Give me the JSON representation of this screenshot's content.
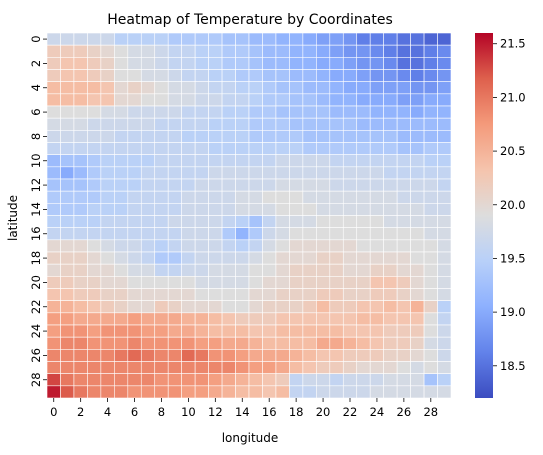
{
  "chart_data": {
    "type": "heatmap",
    "title": "Heatmap of Temperature by Coordinates",
    "xlabel": "longitude",
    "ylabel": "latitude",
    "x_ticks": [
      "0",
      "2",
      "4",
      "6",
      "8",
      "10",
      "12",
      "14",
      "16",
      "18",
      "20",
      "22",
      "24",
      "26",
      "28"
    ],
    "y_ticks": [
      "0",
      "2",
      "4",
      "6",
      "8",
      "10",
      "12",
      "14",
      "16",
      "18",
      "20",
      "22",
      "24",
      "26",
      "28"
    ],
    "x_values": [
      0,
      1,
      2,
      3,
      4,
      5,
      6,
      7,
      8,
      9,
      10,
      11,
      12,
      13,
      14,
      15,
      16,
      17,
      18,
      19,
      20,
      21,
      22,
      23,
      24,
      25,
      26,
      27,
      28,
      29
    ],
    "y_values": [
      0,
      1,
      2,
      3,
      4,
      5,
      6,
      7,
      8,
      9,
      10,
      11,
      12,
      13,
      14,
      15,
      16,
      17,
      18,
      19,
      20,
      21,
      22,
      23,
      24,
      25,
      26,
      27,
      28,
      29
    ],
    "colorbar": {
      "min": 18.2,
      "max": 21.6,
      "ticks": [
        "18.5",
        "19.0",
        "19.5",
        "20.0",
        "20.5",
        "21.0",
        "21.5"
      ],
      "colormap": "coolwarm"
    },
    "grid_lines": "white",
    "values": [
      [
        19.7,
        19.7,
        19.7,
        19.7,
        19.7,
        19.5,
        19.5,
        19.5,
        19.5,
        19.4,
        19.4,
        19.4,
        19.4,
        19.3,
        19.3,
        19.2,
        19.2,
        19.1,
        19.1,
        19.0,
        18.9,
        18.9,
        18.8,
        18.6,
        18.6,
        18.6,
        18.5,
        18.5,
        18.4,
        18.4
      ],
      [
        20.2,
        20.2,
        20.2,
        20.1,
        20.0,
        19.9,
        19.8,
        19.8,
        19.7,
        19.6,
        19.6,
        19.5,
        19.5,
        19.4,
        19.4,
        19.3,
        19.2,
        19.2,
        19.1,
        19.1,
        19.0,
        18.9,
        18.8,
        18.8,
        18.7,
        18.6,
        18.5,
        18.5,
        18.6,
        18.7
      ],
      [
        20.2,
        20.3,
        20.3,
        20.2,
        20.1,
        19.9,
        19.8,
        19.8,
        19.7,
        19.6,
        19.6,
        19.5,
        19.5,
        19.4,
        19.4,
        19.3,
        19.2,
        19.2,
        19.1,
        19.1,
        19.0,
        19.0,
        18.9,
        18.8,
        18.8,
        18.7,
        18.5,
        18.5,
        18.6,
        18.7
      ],
      [
        20.2,
        20.3,
        20.3,
        20.2,
        20.1,
        19.9,
        19.9,
        19.8,
        19.8,
        19.7,
        19.6,
        19.6,
        19.5,
        19.5,
        19.4,
        19.4,
        19.3,
        19.3,
        19.2,
        19.2,
        19.1,
        19.0,
        19.0,
        18.9,
        18.8,
        18.8,
        18.7,
        18.6,
        18.7,
        18.8
      ],
      [
        20.4,
        20.4,
        20.4,
        20.4,
        20.3,
        20.0,
        20.1,
        20.0,
        19.9,
        19.8,
        19.8,
        19.7,
        19.6,
        19.6,
        19.5,
        19.5,
        19.4,
        19.3,
        19.3,
        19.2,
        19.2,
        19.1,
        19.0,
        19.0,
        18.9,
        18.9,
        18.9,
        18.8,
        18.8,
        18.9
      ],
      [
        20.4,
        20.4,
        20.4,
        20.3,
        20.3,
        20.0,
        20.0,
        19.9,
        19.9,
        19.8,
        19.8,
        19.7,
        19.7,
        19.6,
        19.6,
        19.5,
        19.4,
        19.4,
        19.3,
        19.3,
        19.2,
        19.1,
        19.1,
        19.0,
        19.0,
        19.0,
        18.9,
        18.9,
        19.0,
        19.0
      ],
      [
        19.9,
        19.9,
        19.9,
        19.9,
        19.8,
        19.8,
        19.7,
        19.7,
        19.7,
        19.7,
        19.6,
        19.6,
        19.6,
        19.5,
        19.5,
        19.4,
        19.4,
        19.3,
        19.3,
        19.3,
        19.3,
        19.2,
        19.2,
        19.2,
        19.1,
        19.1,
        19.1,
        19.0,
        19.1,
        19.1
      ],
      [
        19.8,
        19.8,
        19.8,
        19.7,
        19.7,
        19.7,
        19.7,
        19.7,
        19.6,
        19.6,
        19.6,
        19.6,
        19.5,
        19.5,
        19.5,
        19.4,
        19.4,
        19.4,
        19.3,
        19.3,
        19.3,
        19.3,
        19.3,
        19.2,
        19.2,
        19.2,
        19.2,
        19.2,
        19.2,
        19.2
      ],
      [
        19.7,
        19.7,
        19.7,
        19.7,
        19.7,
        19.6,
        19.6,
        19.6,
        19.6,
        19.6,
        19.5,
        19.5,
        19.5,
        19.5,
        19.5,
        19.4,
        19.4,
        19.4,
        19.4,
        19.3,
        19.3,
        19.3,
        19.3,
        19.3,
        19.3,
        19.3,
        19.2,
        19.2,
        19.2,
        19.2
      ],
      [
        19.6,
        19.6,
        19.6,
        19.6,
        19.6,
        19.6,
        19.6,
        19.6,
        19.6,
        19.6,
        19.6,
        19.6,
        19.5,
        19.5,
        19.5,
        19.5,
        19.5,
        19.5,
        19.5,
        19.4,
        19.4,
        19.4,
        19.4,
        19.4,
        19.4,
        19.4,
        19.3,
        19.3,
        19.4,
        19.4
      ],
      [
        19.2,
        19.3,
        19.3,
        19.4,
        19.5,
        19.5,
        19.5,
        19.5,
        19.6,
        19.6,
        19.6,
        19.6,
        19.6,
        19.6,
        19.6,
        19.6,
        19.6,
        19.7,
        19.7,
        19.7,
        19.7,
        19.6,
        19.6,
        19.6,
        19.6,
        19.6,
        19.6,
        19.6,
        19.5,
        19.5
      ],
      [
        19.2,
        19.0,
        19.2,
        19.4,
        19.5,
        19.5,
        19.5,
        19.6,
        19.6,
        19.6,
        19.6,
        19.6,
        19.7,
        19.7,
        19.7,
        19.7,
        19.7,
        19.7,
        19.7,
        19.7,
        19.7,
        19.7,
        19.7,
        19.7,
        19.7,
        19.6,
        19.6,
        19.6,
        19.6,
        19.6
      ],
      [
        19.3,
        19.3,
        19.3,
        19.4,
        19.5,
        19.5,
        19.5,
        19.6,
        19.6,
        19.6,
        19.6,
        19.7,
        19.7,
        19.7,
        19.7,
        19.7,
        19.7,
        19.8,
        19.8,
        19.8,
        19.8,
        19.7,
        19.7,
        19.7,
        19.7,
        19.7,
        19.7,
        19.7,
        19.7,
        19.6
      ],
      [
        19.4,
        19.4,
        19.4,
        19.4,
        19.5,
        19.5,
        19.6,
        19.6,
        19.6,
        19.6,
        19.7,
        19.7,
        19.7,
        19.7,
        19.8,
        19.8,
        19.9,
        19.9,
        19.9,
        19.8,
        19.8,
        19.8,
        19.8,
        19.8,
        19.8,
        19.8,
        19.7,
        19.7,
        19.7,
        19.7
      ],
      [
        19.4,
        19.4,
        19.4,
        19.5,
        19.5,
        19.5,
        19.6,
        19.6,
        19.6,
        19.6,
        19.7,
        19.7,
        19.7,
        19.7,
        19.8,
        19.8,
        19.8,
        19.9,
        19.9,
        19.9,
        19.8,
        19.8,
        19.8,
        19.8,
        19.8,
        19.8,
        19.8,
        19.8,
        19.7,
        19.7
      ],
      [
        19.5,
        19.5,
        19.5,
        19.5,
        19.6,
        19.6,
        19.6,
        19.6,
        19.6,
        19.7,
        19.7,
        19.7,
        19.7,
        19.6,
        19.5,
        19.3,
        19.6,
        19.8,
        19.8,
        19.8,
        19.9,
        19.9,
        19.9,
        19.9,
        19.9,
        19.8,
        19.8,
        19.8,
        19.8,
        19.8
      ],
      [
        19.6,
        19.6,
        19.6,
        19.6,
        19.6,
        19.6,
        19.6,
        19.6,
        19.6,
        19.6,
        19.7,
        19.7,
        19.7,
        19.4,
        19.1,
        19.4,
        19.7,
        19.8,
        19.9,
        19.9,
        19.9,
        19.9,
        19.9,
        19.9,
        19.9,
        19.9,
        19.9,
        19.9,
        19.8,
        19.8
      ],
      [
        20.0,
        20.0,
        20.0,
        19.9,
        19.8,
        19.7,
        19.7,
        19.6,
        19.5,
        19.6,
        19.7,
        19.7,
        19.7,
        19.6,
        19.5,
        19.6,
        19.8,
        19.9,
        20.0,
        20.0,
        20.0,
        20.0,
        20.0,
        19.9,
        19.9,
        19.9,
        19.9,
        19.9,
        19.9,
        19.8
      ],
      [
        20.1,
        20.1,
        20.1,
        20.0,
        19.9,
        19.8,
        19.7,
        19.6,
        19.4,
        19.4,
        19.6,
        19.7,
        19.7,
        19.7,
        19.7,
        19.8,
        19.9,
        20.0,
        20.0,
        20.0,
        20.1,
        20.1,
        20.0,
        20.0,
        20.0,
        20.0,
        20.0,
        19.9,
        19.9,
        19.8
      ],
      [
        20.0,
        20.1,
        20.1,
        20.0,
        20.0,
        19.9,
        19.8,
        19.8,
        19.6,
        19.6,
        19.7,
        19.7,
        19.8,
        19.8,
        19.8,
        19.9,
        19.9,
        20.0,
        20.1,
        20.1,
        20.1,
        20.1,
        20.0,
        20.0,
        20.1,
        20.1,
        20.0,
        20.0,
        19.9,
        19.8
      ],
      [
        20.2,
        20.2,
        20.1,
        20.1,
        20.0,
        20.0,
        19.9,
        19.9,
        19.9,
        19.9,
        19.9,
        19.8,
        19.8,
        19.8,
        19.8,
        19.9,
        20.0,
        20.0,
        20.1,
        20.1,
        20.1,
        20.1,
        20.1,
        20.1,
        20.3,
        20.3,
        20.2,
        20.0,
        19.9,
        19.8
      ],
      [
        20.3,
        20.3,
        20.2,
        20.2,
        20.1,
        20.1,
        20.0,
        20.0,
        20.0,
        20.0,
        20.0,
        19.9,
        19.9,
        19.9,
        19.9,
        20.0,
        20.0,
        20.1,
        20.1,
        20.1,
        20.2,
        20.2,
        20.1,
        20.1,
        20.2,
        20.2,
        20.1,
        20.0,
        19.9,
        19.8
      ],
      [
        20.5,
        20.5,
        20.4,
        20.3,
        20.2,
        20.1,
        20.0,
        20.0,
        20.2,
        20.1,
        20.0,
        20.0,
        20.0,
        19.9,
        19.9,
        20.0,
        20.1,
        20.1,
        20.1,
        20.2,
        20.4,
        20.2,
        20.2,
        20.3,
        20.3,
        20.4,
        20.3,
        20.5,
        20.1,
        19.5
      ],
      [
        20.7,
        20.7,
        20.6,
        20.6,
        20.6,
        20.6,
        20.7,
        20.6,
        20.6,
        20.6,
        20.5,
        20.5,
        20.4,
        20.3,
        20.2,
        20.2,
        20.2,
        20.3,
        20.3,
        20.3,
        20.3,
        20.3,
        20.3,
        20.4,
        20.4,
        20.3,
        20.3,
        20.3,
        19.9,
        19.6
      ],
      [
        20.7,
        20.8,
        20.8,
        20.7,
        20.8,
        20.8,
        20.8,
        20.7,
        20.7,
        20.6,
        20.6,
        20.5,
        20.4,
        20.4,
        20.4,
        20.3,
        20.3,
        20.4,
        20.4,
        20.4,
        20.4,
        20.4,
        20.3,
        20.3,
        20.3,
        20.2,
        20.2,
        20.2,
        19.9,
        19.7
      ],
      [
        20.8,
        20.9,
        20.9,
        20.8,
        20.8,
        20.8,
        20.9,
        20.8,
        20.8,
        20.8,
        20.8,
        20.7,
        20.7,
        20.6,
        20.6,
        20.5,
        20.4,
        20.4,
        20.4,
        20.4,
        20.6,
        20.6,
        20.5,
        20.4,
        20.3,
        20.2,
        20.2,
        20.1,
        19.8,
        19.7
      ],
      [
        20.9,
        20.9,
        20.9,
        20.9,
        20.9,
        21.0,
        21.1,
        21.0,
        20.9,
        20.9,
        21.1,
        21.0,
        20.8,
        20.8,
        20.7,
        20.6,
        20.6,
        20.6,
        20.5,
        20.4,
        20.3,
        20.3,
        20.2,
        20.2,
        20.2,
        20.1,
        20.1,
        20.0,
        19.9,
        19.7
      ],
      [
        20.9,
        20.9,
        20.9,
        20.9,
        20.9,
        20.9,
        20.9,
        20.9,
        20.9,
        20.9,
        20.9,
        20.9,
        20.9,
        20.9,
        20.8,
        20.7,
        20.7,
        20.6,
        20.4,
        20.3,
        20.2,
        20.2,
        20.1,
        20.0,
        20.0,
        20.0,
        19.9,
        19.8,
        19.9,
        19.8
      ],
      [
        21.3,
        21.0,
        20.9,
        20.9,
        20.9,
        20.9,
        20.9,
        20.9,
        20.8,
        20.8,
        20.8,
        20.8,
        20.7,
        20.6,
        20.5,
        20.4,
        20.3,
        20.2,
        19.6,
        19.7,
        19.7,
        19.6,
        19.7,
        19.7,
        19.7,
        19.8,
        19.8,
        19.8,
        19.3,
        19.5
      ],
      [
        21.5,
        21.2,
        21.0,
        20.9,
        20.9,
        20.9,
        20.8,
        20.8,
        20.8,
        20.8,
        20.7,
        20.7,
        20.6,
        20.5,
        20.4,
        20.4,
        20.3,
        20.4,
        19.6,
        19.6,
        19.7,
        19.7,
        19.7,
        19.7,
        19.8,
        19.8,
        19.8,
        19.8,
        19.8,
        19.8
      ]
    ]
  }
}
